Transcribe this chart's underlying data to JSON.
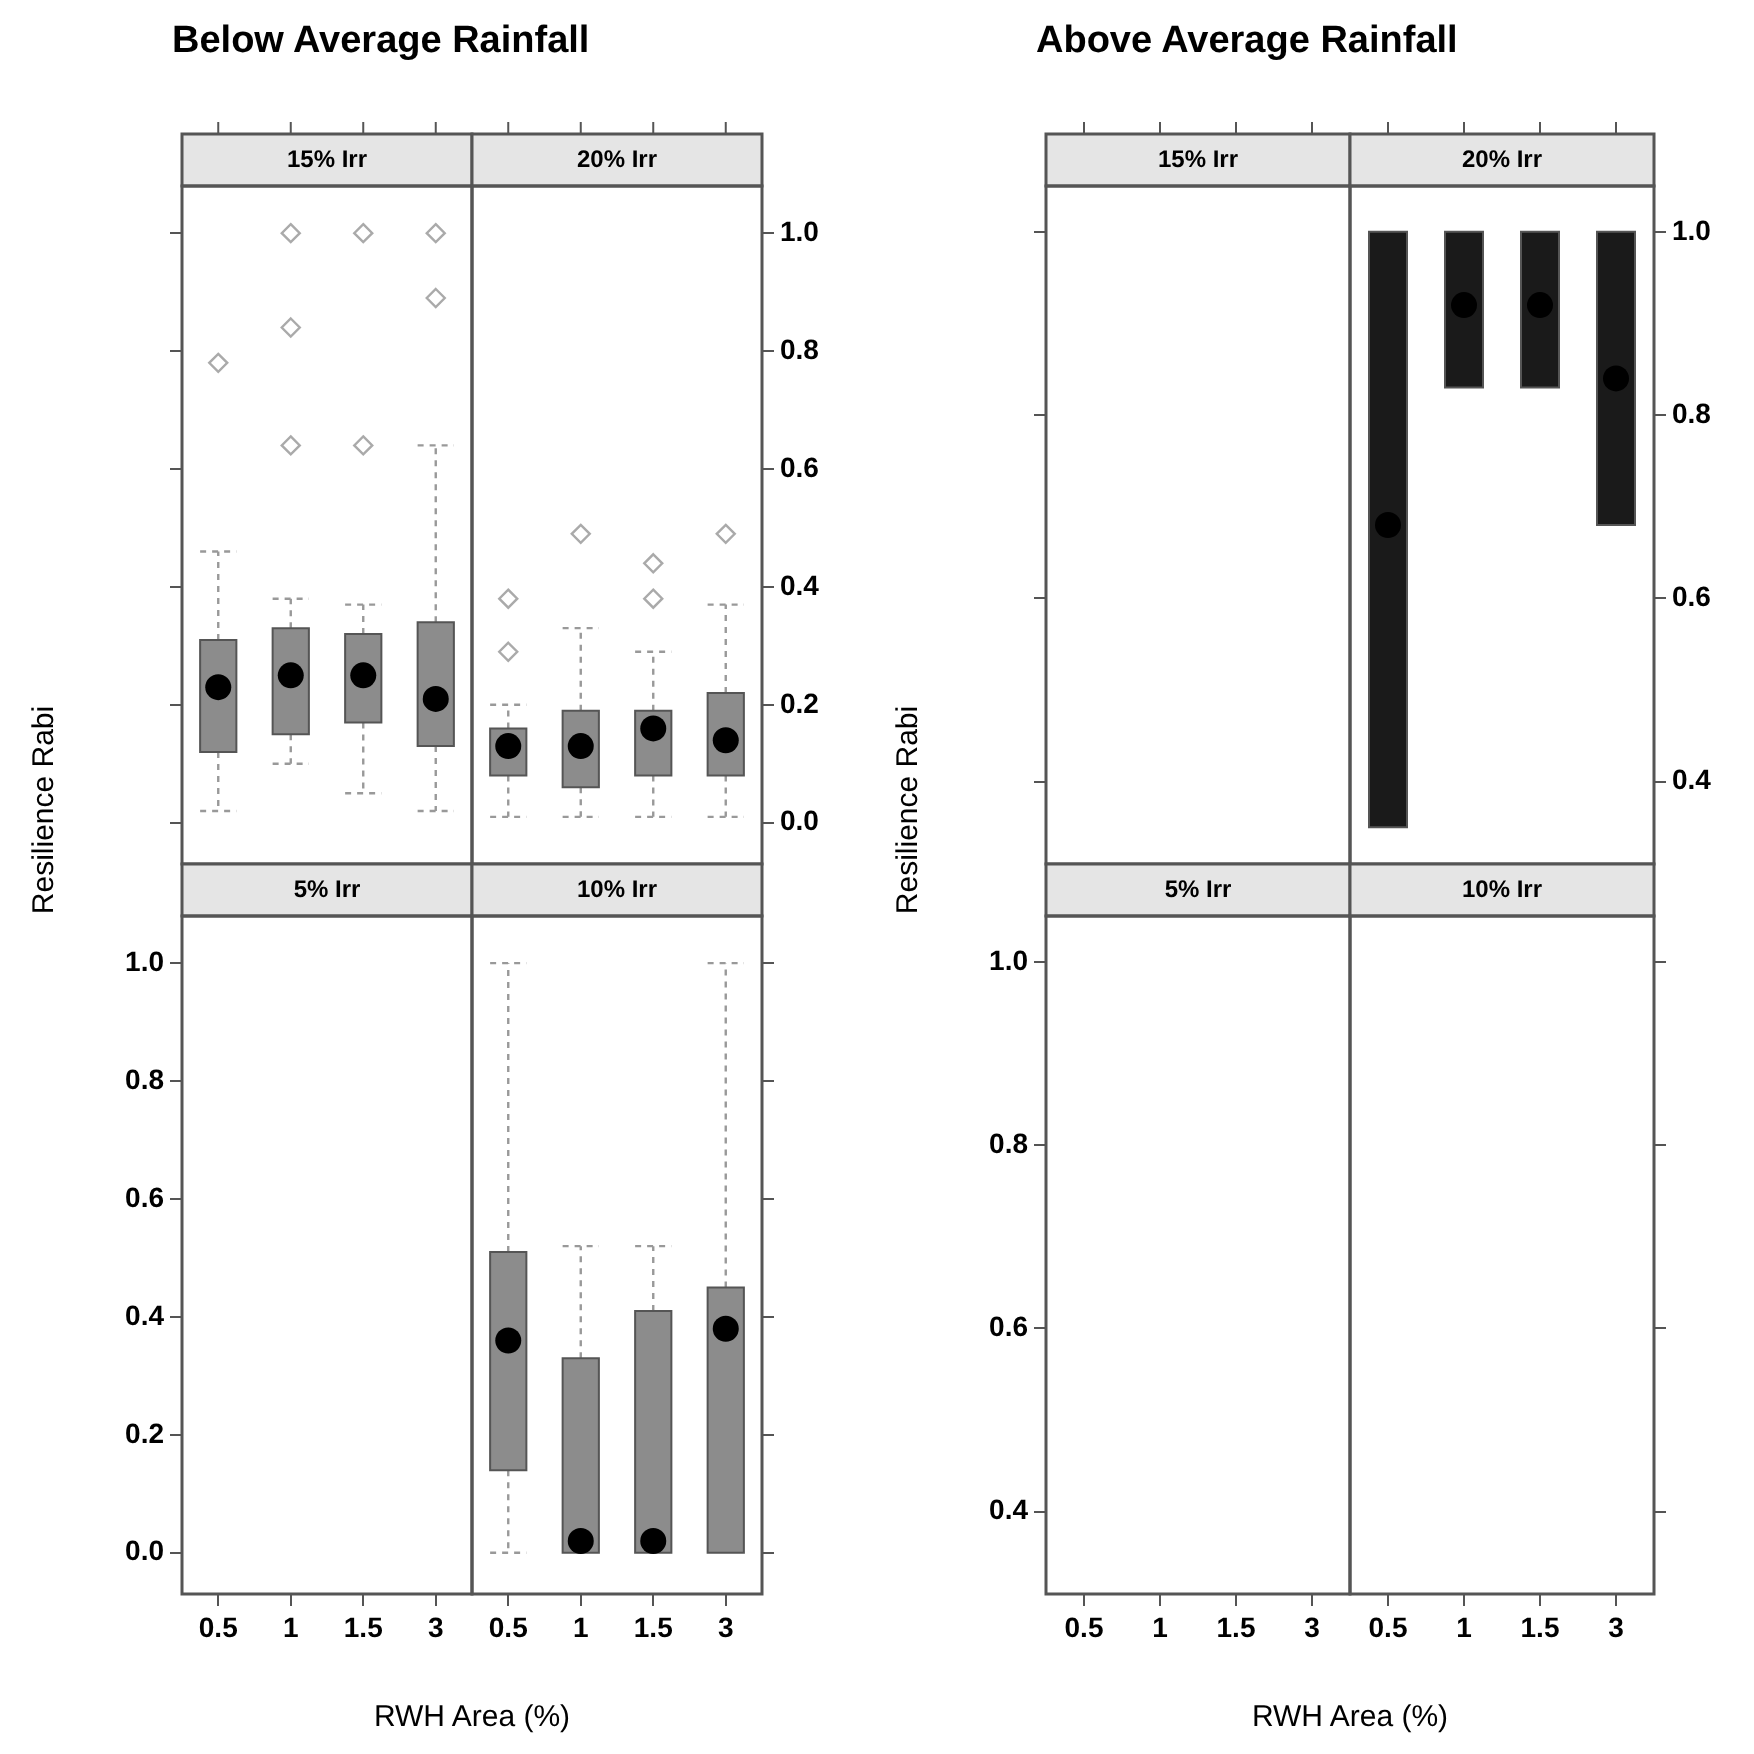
{
  "chart_data": [
    {
      "type": "box",
      "title": "Below Average Rainfall",
      "subtitle": "15% Irr",
      "categories": [
        "0.5",
        "1",
        "1.5",
        "3"
      ],
      "color": "#8c8c8c",
      "ylim": [
        -0.07,
        1.08
      ],
      "yticks": [
        {
          "value": 0,
          "label": null
        },
        {
          "value": 0.2,
          "label": null
        },
        {
          "value": 0.4,
          "label": null
        },
        {
          "value": 0.6,
          "label": null
        },
        {
          "value": 0.8,
          "label": null
        },
        {
          "value": 1,
          "label": null
        }
      ],
      "tick_labels": false,
      "boxes": [
        {
          "low": 0.02,
          "q1": 0.12,
          "median": 0.23,
          "q3": 0.31,
          "high": 0.46,
          "outliers": [
            0.78
          ]
        },
        {
          "low": 0.1,
          "q1": 0.15,
          "median": 0.25,
          "q3": 0.33,
          "high": 0.38,
          "outliers": [
            1.0,
            0.84,
            0.64
          ]
        },
        {
          "low": 0.05,
          "q1": 0.17,
          "median": 0.25,
          "q3": 0.32,
          "high": 0.37,
          "outliers": [
            1.0,
            0.64
          ]
        },
        {
          "low": 0.02,
          "q1": 0.13,
          "median": 0.21,
          "q3": 0.34,
          "high": 0.64,
          "outliers": [
            1.0,
            0.89
          ]
        }
      ]
    },
    {
      "type": "box",
      "subtitle": "20% Irr",
      "categories": [
        "0.5",
        "1",
        "1.5",
        "3"
      ],
      "color": "#8c8c8c",
      "ylim": [
        -0.07,
        1.08
      ],
      "yticks": [
        {
          "value": 0,
          "label": "0.0"
        },
        {
          "value": 0.2,
          "label": "0.2"
        },
        {
          "value": 0.4,
          "label": "0.4"
        },
        {
          "value": 0.6,
          "label": "0.6"
        },
        {
          "value": 0.8,
          "label": "0.8"
        },
        {
          "value": 1,
          "label": "1.0"
        }
      ],
      "tick_labels": "y",
      "boxes": [
        {
          "low": 0.01,
          "q1": 0.08,
          "median": 0.13,
          "q3": 0.16,
          "high": 0.2,
          "outliers": [
            0.38,
            0.29
          ]
        },
        {
          "low": 0.01,
          "q1": 0.06,
          "median": 0.13,
          "q3": 0.19,
          "high": 0.33,
          "outliers": [
            0.49
          ]
        },
        {
          "low": 0.01,
          "q1": 0.08,
          "median": 0.16,
          "q3": 0.19,
          "high": 0.29,
          "outliers": [
            0.38,
            0.44
          ]
        },
        {
          "low": 0.01,
          "q1": 0.08,
          "median": 0.14,
          "q3": 0.22,
          "high": 0.37,
          "outliers": [
            0.49
          ]
        }
      ]
    },
    {
      "type": "box",
      "subtitle": "5% Irr",
      "xlabel": "RWH Area (%)",
      "ylabel": "Resilience Rabi",
      "categories": [
        "0.5",
        "1",
        "1.5",
        "3"
      ],
      "ylim": [
        -0.07,
        1.08
      ],
      "yticks": [
        {
          "value": 0,
          "label": "0.0"
        },
        {
          "value": 0.2,
          "label": "0.2"
        },
        {
          "value": 0.4,
          "label": "0.4"
        },
        {
          "value": 0.6,
          "label": "0.6"
        },
        {
          "value": 0.8,
          "label": "0.8"
        },
        {
          "value": 1,
          "label": "1.0"
        }
      ],
      "boxes": [
        null,
        null,
        null,
        null
      ]
    },
    {
      "type": "box",
      "subtitle": "10% Irr",
      "categories": [
        "0.5",
        "1",
        "1.5",
        "3"
      ],
      "color": "#8c8c8c",
      "ylim": [
        -0.07,
        1.08
      ],
      "yticks": [
        {
          "value": 0,
          "label": null
        },
        {
          "value": 0.2,
          "label": null
        },
        {
          "value": 0.4,
          "label": null
        },
        {
          "value": 0.6,
          "label": null
        },
        {
          "value": 0.8,
          "label": null
        },
        {
          "value": 1,
          "label": null
        }
      ],
      "tick_labels": "x",
      "boxes": [
        {
          "low": 0,
          "q1": 0.14,
          "median": 0.36,
          "q3": 0.51,
          "high": 1.0
        },
        {
          "low": 0,
          "q1": 0,
          "median": 0.02,
          "q3": 0.33,
          "high": 0.52
        },
        {
          "low": 0,
          "q1": 0,
          "median": 0.02,
          "q3": 0.41,
          "high": 0.52
        },
        {
          "low": 0,
          "q1": 0,
          "median": 0.38,
          "q3": 0.45,
          "high": 1.0
        }
      ]
    },
    {
      "type": "box",
      "title": "Above Average Rainfall",
      "subtitle": "15% Irr",
      "categories": [
        "0.5",
        "1",
        "1.5",
        "3"
      ],
      "ylim": [
        0.31,
        1.05
      ],
      "yticks": [
        {
          "value": 0.4,
          "label": null
        },
        {
          "value": 0.6,
          "label": null
        },
        {
          "value": 0.8,
          "label": null
        },
        {
          "value": 1,
          "label": null
        }
      ],
      "tick_labels": false,
      "boxes": [
        null,
        null,
        null,
        null
      ]
    },
    {
      "type": "box",
      "subtitle": "20% Irr",
      "categories": [
        "0.5",
        "1",
        "1.5",
        "3"
      ],
      "color": "#1a1a1a",
      "ylim": [
        0.31,
        1.05
      ],
      "yticks": [
        {
          "value": 0.4,
          "label": "0.4"
        },
        {
          "value": 0.6,
          "label": "0.6"
        },
        {
          "value": 0.8,
          "label": "0.8"
        },
        {
          "value": 1,
          "label": "1.0"
        }
      ],
      "tick_labels": "y",
      "boxes": [
        {
          "low": 0.35,
          "q1": 0.35,
          "median": 0.68,
          "q3": 1.0,
          "high": 1.0
        },
        {
          "low": 0.83,
          "q1": 0.83,
          "median": 0.92,
          "q3": 1.0,
          "high": 1.0
        },
        {
          "low": 0.83,
          "q1": 0.83,
          "median": 0.92,
          "q3": 1.0,
          "high": 1.0
        },
        {
          "low": 0.68,
          "q1": 0.68,
          "median": 0.84,
          "q3": 1.0,
          "high": 1.0
        }
      ]
    },
    {
      "type": "box",
      "subtitle": "5% Irr",
      "xlabel": "RWH Area (%)",
      "ylabel": "Resilience Rabi",
      "categories": [
        "0.5",
        "1",
        "1.5",
        "3"
      ],
      "ylim": [
        0.31,
        1.05
      ],
      "yticks": [
        {
          "value": 0.4,
          "label": "0.4"
        },
        {
          "value": 0.6,
          "label": "0.6"
        },
        {
          "value": 0.8,
          "label": "0.8"
        },
        {
          "value": 1,
          "label": "1.0"
        }
      ],
      "boxes": [
        null,
        null,
        null,
        null
      ]
    },
    {
      "type": "box",
      "subtitle": "10% Irr",
      "categories": [
        "0.5",
        "1",
        "1.5",
        "3"
      ],
      "ylim": [
        0.31,
        1.05
      ],
      "yticks": [
        {
          "value": 0.4,
          "label": null
        },
        {
          "value": 0.6,
          "label": null
        },
        {
          "value": 0.8,
          "label": null
        },
        {
          "value": 1,
          "label": null
        }
      ],
      "tick_labels": "x",
      "boxes": [
        null,
        null,
        null,
        null
      ]
    }
  ]
}
